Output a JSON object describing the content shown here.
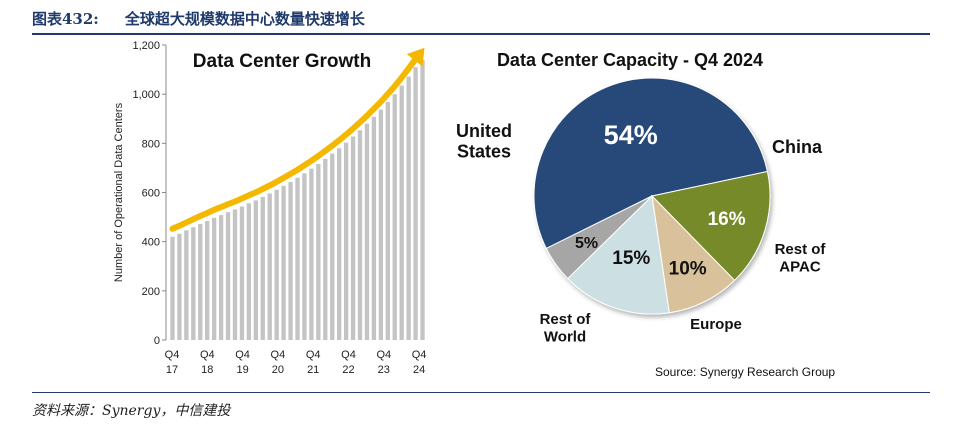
{
  "figure": {
    "number": "图表432:",
    "title": "全球超大规模数据中心数量快速增长",
    "source": "资料来源：Synergy，中信建投"
  },
  "chart_data": [
    {
      "type": "bar",
      "title": "Data Center Growth",
      "ylabel": "Number of Operational Data Centers",
      "ylim": [
        0,
        1200
      ],
      "yticks": [
        "0",
        "200",
        "400",
        "600",
        "800",
        "1,000",
        "1,200"
      ],
      "grid": false,
      "xticks": [
        {
          "q": "Q4",
          "y": "17"
        },
        {
          "q": "Q4",
          "y": "18"
        },
        {
          "q": "Q4",
          "y": "19"
        },
        {
          "q": "Q4",
          "y": "20"
        },
        {
          "q": "Q4",
          "y": "21"
        },
        {
          "q": "Q4",
          "y": "22"
        },
        {
          "q": "Q4",
          "y": "23"
        },
        {
          "q": "Q4",
          "y": "24"
        }
      ],
      "values": [
        420,
        432,
        446,
        459,
        472,
        484,
        497,
        508,
        520,
        531,
        543,
        556,
        568,
        582,
        596,
        611,
        627,
        643,
        660,
        678,
        697,
        716,
        737,
        758,
        780,
        803,
        828,
        853,
        880,
        908,
        937,
        968,
        1000,
        1035,
        1072,
        1110,
        1140
      ],
      "trend_arrow_color": "#f5b800",
      "bar_color": "#c4c4c4"
    },
    {
      "type": "pie",
      "title": "Data Center Capacity - Q4 2024",
      "source_note": "Source: Synergy Research Group",
      "slices": [
        {
          "label": "United States",
          "value": 54,
          "text": "54%",
          "color": "#264a7a",
          "text_color": "#ffffff"
        },
        {
          "label": "China",
          "value": 16,
          "text": "16%",
          "color": "#768a2a",
          "text_color": "#ffffff"
        },
        {
          "label": "Rest of APAC",
          "value": 10,
          "text": "10%",
          "color": "#d9c29b",
          "text_color": "#111111"
        },
        {
          "label": "Europe",
          "value": 15,
          "text": "15%",
          "color": "#cce0e3",
          "text_color": "#111111"
        },
        {
          "label": "Rest of World",
          "value": 5,
          "text": "5%",
          "color": "#a6a6a6",
          "text_color": "#111111"
        }
      ]
    }
  ]
}
